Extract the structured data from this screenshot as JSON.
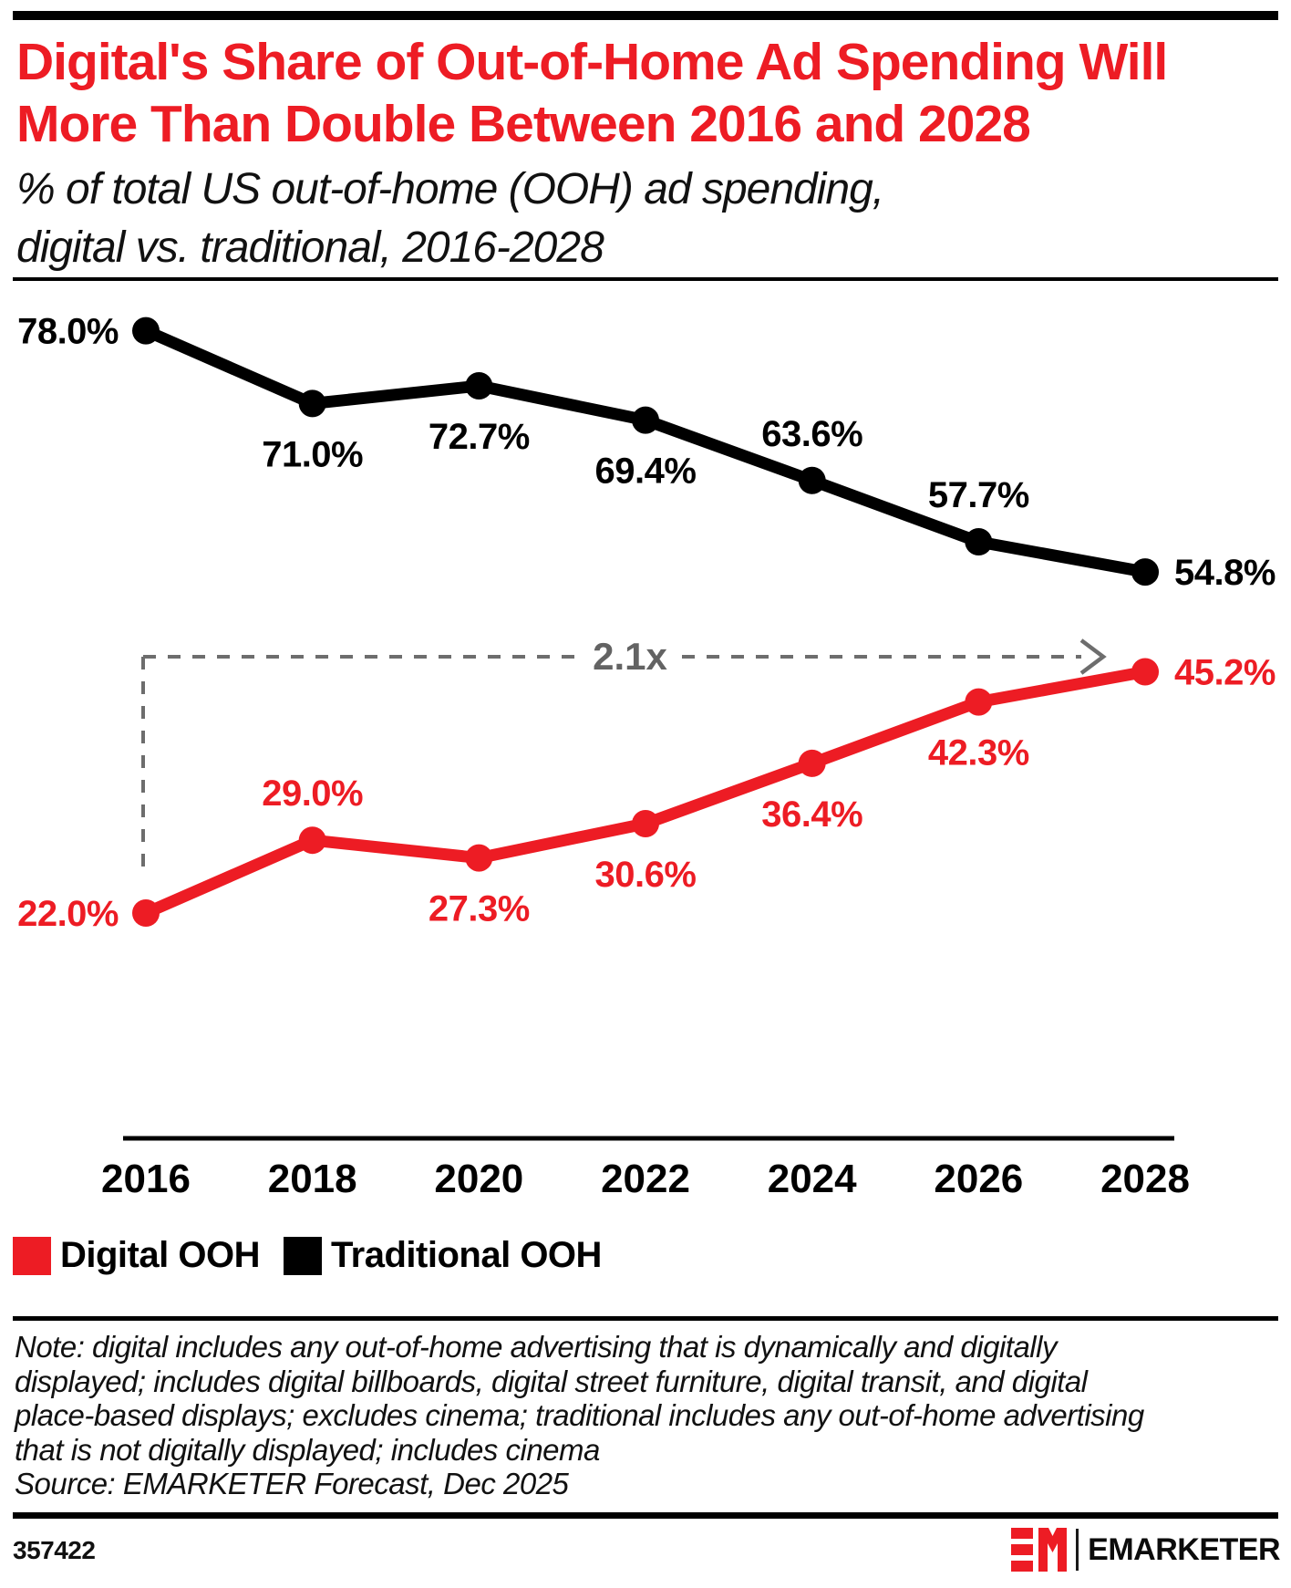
{
  "header": {
    "title_line1": "Digital's Share of Out-of-Home Ad Spending Will",
    "title_line2": "More Than Double Between 2016 and 2028",
    "subtitle_line1": "% of total US out-of-home (OOH) ad spending,",
    "subtitle_line2": "digital vs. traditional, 2016-2028"
  },
  "chart_data": {
    "type": "line",
    "categories": [
      "2016",
      "2018",
      "2020",
      "2022",
      "2024",
      "2026",
      "2028"
    ],
    "series": [
      {
        "name": "Traditional OOH",
        "color": "#000000",
        "values": [
          78.0,
          71.0,
          72.7,
          69.4,
          63.6,
          57.7,
          54.8
        ],
        "labels": [
          "78.0%",
          "71.0%",
          "72.7%",
          "69.4%",
          "63.6%",
          "57.7%",
          "54.8%"
        ],
        "label_positions": [
          "left",
          "below",
          "below",
          "below",
          "above",
          "above",
          "right"
        ]
      },
      {
        "name": "Digital OOH",
        "color": "#ED1C24",
        "values": [
          22.0,
          29.0,
          27.3,
          30.6,
          36.4,
          42.3,
          45.2
        ],
        "labels": [
          "22.0%",
          "29.0%",
          "27.3%",
          "30.6%",
          "36.4%",
          "42.3%",
          "45.2%"
        ],
        "label_positions": [
          "left",
          "above",
          "below",
          "below",
          "below",
          "below",
          "right"
        ]
      }
    ],
    "annotation": {
      "text": "2.1x",
      "from_year": "2016",
      "to_year": "2028"
    },
    "ylim": [
      0,
      100
    ],
    "grid": false,
    "legend_position": "bottom-left"
  },
  "legend": {
    "items": [
      {
        "label": "Digital OOH",
        "color": "#ED1C24"
      },
      {
        "label": "Traditional OOH",
        "color": "#000000"
      }
    ]
  },
  "footnote": {
    "lines": [
      "Note: digital includes any out-of-home advertising that is dynamically and digitally",
      "displayed; includes digital billboards, digital street furniture, digital transit, and digital",
      "place-based displays; excludes cinema; traditional includes any out-of-home advertising",
      "that is not digitally displayed; includes cinema",
      "Source: EMARKETER Forecast, Dec 2025"
    ]
  },
  "footer": {
    "chart_id": "357422",
    "brand_wordmark": "EMARKETER"
  },
  "colors": {
    "accent_red": "#ED1C24",
    "annotation_gray": "#6d6d6d",
    "title_red": "#ED1C24"
  }
}
